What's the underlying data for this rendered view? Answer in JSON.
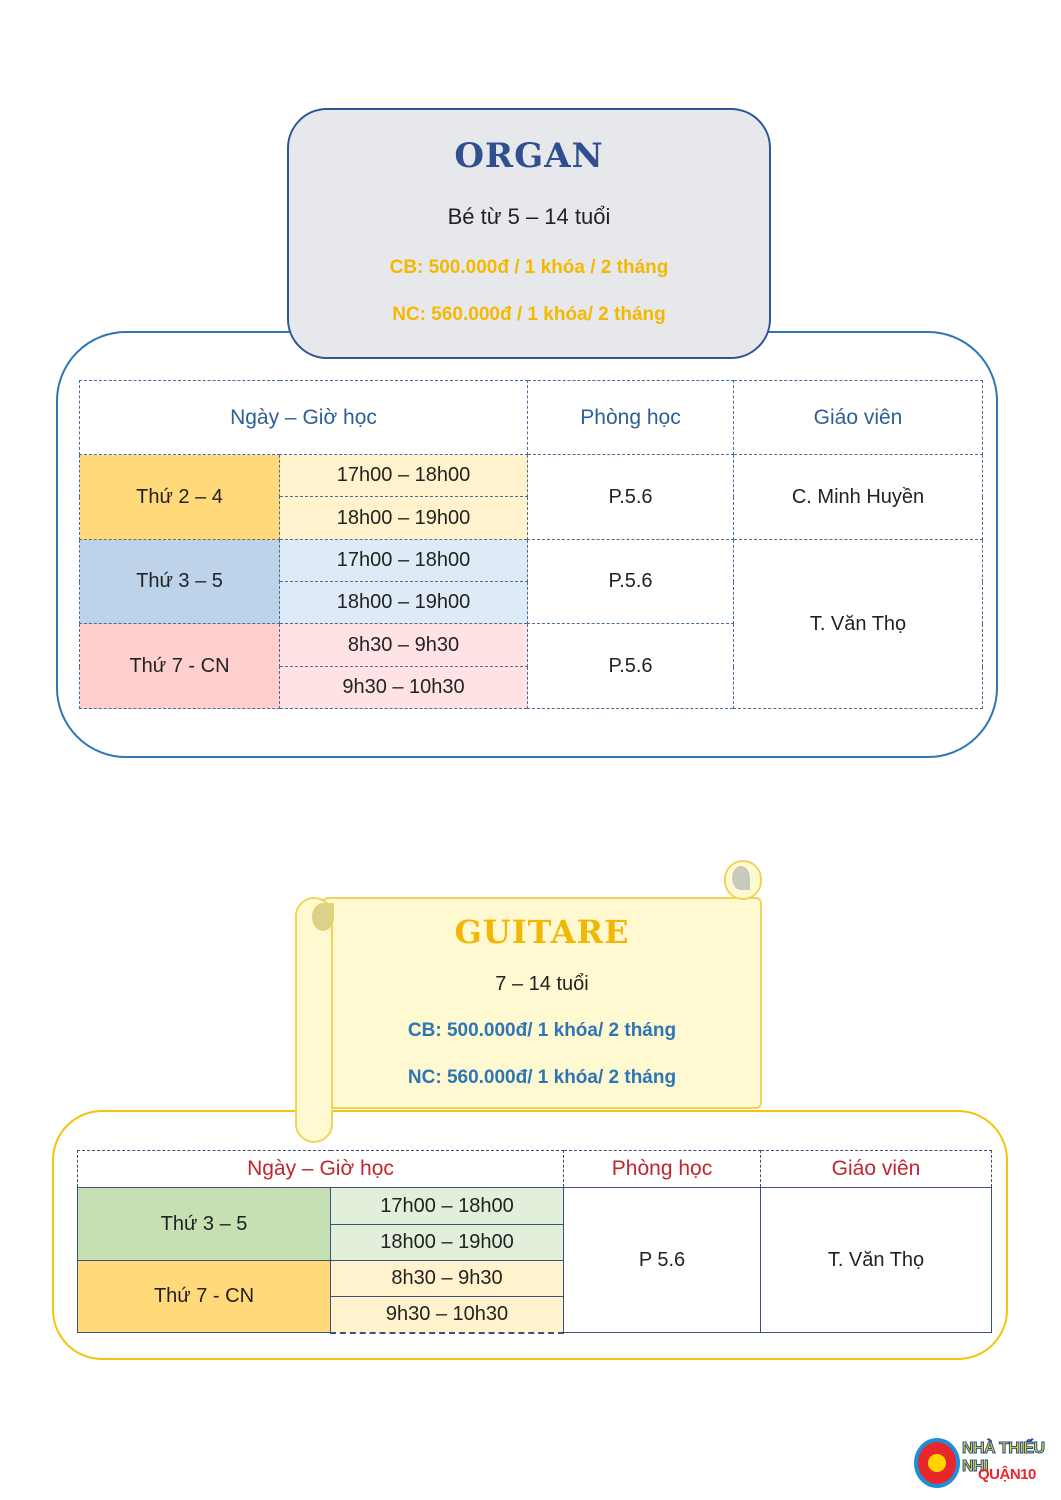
{
  "organ": {
    "title": "ORGAN",
    "age": "Bé từ 5 – 14 tuổi",
    "price_basic": "CB: 500.000đ / 1 khóa / 2 tháng",
    "price_advanced": "NC: 560.000đ / 1 khóa/ 2 tháng",
    "headers": [
      "Ngày – Giờ học",
      "Phòng học",
      "Giáo viên"
    ],
    "groups": [
      {
        "day": "Thứ 2 – 4",
        "times": [
          "17h00 – 18h00",
          "18h00 – 19h00"
        ],
        "room": "P.5.6",
        "teacher": "C. Minh Huyền",
        "color": "#ffd97a",
        "time_color": "#fff2cc"
      },
      {
        "day": "Thứ 3 – 5",
        "times": [
          "17h00 – 18h00",
          "18h00 – 19h00"
        ],
        "room": "P.5.6",
        "color": "#bdd3ea",
        "time_color": "#deebf7"
      },
      {
        "day": "Thứ 7 - CN",
        "times": [
          "8h30 – 9h30",
          "9h30 – 10h30"
        ],
        "room": "P.5.6",
        "color": "#ffcfd0",
        "time_color": "#ffe3e4"
      }
    ],
    "shared_teacher": "T. Văn Thọ"
  },
  "guitare": {
    "title": "GUITARE",
    "age": "7 – 14 tuổi",
    "price_basic": "CB: 500.000đ/ 1 khóa/ 2 tháng",
    "price_advanced": "NC: 560.000đ/ 1 khóa/ 2 tháng",
    "headers": [
      "Ngày – Giờ học",
      "Phòng học",
      "Giáo viên"
    ],
    "groups": [
      {
        "day": "Thứ 3 – 5",
        "times": [
          "17h00 – 18h00",
          "18h00 – 19h00"
        ],
        "color": "#c6e0b4",
        "time_color": "#e2efda"
      },
      {
        "day": "Thứ 7 - CN",
        "times": [
          "8h30 – 9h30",
          "9h30 – 10h30"
        ],
        "color": "#ffd97a",
        "time_color": "#fff2cc"
      }
    ],
    "room": "P 5.6",
    "teacher": "T. Văn Thọ"
  },
  "logo": {
    "line1": "NHÀ THIẾU NHI",
    "line2": "QUẬN10"
  }
}
